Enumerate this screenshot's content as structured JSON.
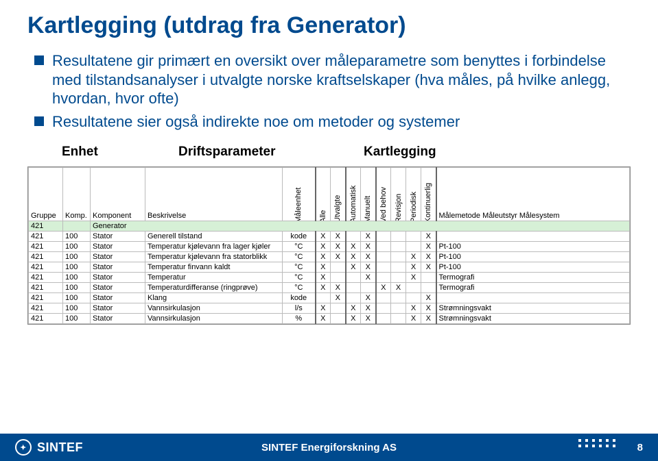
{
  "colors": {
    "brand": "#004a8e",
    "row_highlight": "#d6f0d6",
    "border": "#bbbbbb"
  },
  "title": "Kartlegging  (utdrag fra Generator)",
  "bullets": [
    "Resultatene gir primært en oversikt over måleparametre som benyttes i forbindelse med tilstandsanalyser i utvalgte norske kraftselskaper (hva måles, på hvilke anlegg, hvordan, hvor ofte)",
    "Resultatene sier også indirekte noe om metoder og systemer"
  ],
  "section_labels": [
    "Enhet",
    "Driftsparameter",
    "Kartlegging"
  ],
  "table": {
    "columns_left": [
      "Gruppe",
      "Komp.",
      "Komponent",
      "Beskrivelse",
      "Måleenhet"
    ],
    "columns_rot": [
      "Alle",
      "Utvalgte",
      "Automatisk",
      "Manuelt",
      "Ved behov",
      "Revisjon",
      "Periodisk",
      "Kontinuerlig"
    ],
    "columns_right_label": "Målemetode\nMåleutstyr\nMålesystem",
    "generator_row": {
      "gruppe": "421",
      "label": "Generator"
    },
    "rows": [
      {
        "g": "421",
        "k": "100",
        "comp": "Stator",
        "desc": "Generell tilstand",
        "unit": "kode",
        "marks": [
          "X",
          "X",
          "",
          "X",
          "",
          "",
          "",
          "X"
        ],
        "method": ""
      },
      {
        "g": "421",
        "k": "100",
        "comp": "Stator",
        "desc": "Temperatur kjølevann fra lager kjøler",
        "unit": "°C",
        "marks": [
          "X",
          "X",
          "X",
          "X",
          "",
          "",
          "",
          "X"
        ],
        "method": "Pt-100"
      },
      {
        "g": "421",
        "k": "100",
        "comp": "Stator",
        "desc": "Temperatur kjølevann fra statorblikk",
        "unit": "°C",
        "marks": [
          "X",
          "X",
          "X",
          "X",
          "",
          "",
          "X",
          "X"
        ],
        "method": "Pt-100"
      },
      {
        "g": "421",
        "k": "100",
        "comp": "Stator",
        "desc": "Temperatur finvann kaldt",
        "unit": "°C",
        "marks": [
          "X",
          "",
          "X",
          "X",
          "",
          "",
          "X",
          "X"
        ],
        "method": "Pt-100"
      },
      {
        "g": "421",
        "k": "100",
        "comp": "Stator",
        "desc": "Temperatur",
        "unit": "°C",
        "marks": [
          "X",
          "",
          "",
          "X",
          "",
          "",
          "X",
          ""
        ],
        "method": "Termografi"
      },
      {
        "g": "421",
        "k": "100",
        "comp": "Stator",
        "desc": "Temperaturdifferanse (ringprøve)",
        "unit": "°C",
        "marks": [
          "X",
          "X",
          "",
          "",
          "X",
          "X",
          "",
          ""
        ],
        "method": "Termografi"
      },
      {
        "g": "421",
        "k": "100",
        "comp": "Stator",
        "desc": "Klang",
        "unit": "kode",
        "marks": [
          "",
          "X",
          "",
          "X",
          "",
          "",
          "",
          "X"
        ],
        "method": ""
      },
      {
        "g": "421",
        "k": "100",
        "comp": "Stator",
        "desc": "Vannsirkulasjon",
        "unit": "l/s",
        "marks": [
          "X",
          "",
          "X",
          "X",
          "",
          "",
          "X",
          "X"
        ],
        "method": "Strømningsvakt"
      },
      {
        "g": "421",
        "k": "100",
        "comp": "Stator",
        "desc": "Vannsirkulasjon",
        "unit": "%",
        "marks": [
          "X",
          "",
          "X",
          "X",
          "",
          "",
          "X",
          "X"
        ],
        "method": "Strømningsvakt"
      }
    ]
  },
  "footer": {
    "logo": "SINTEF",
    "center": "SINTEF Energiforskning AS",
    "page": "8"
  }
}
